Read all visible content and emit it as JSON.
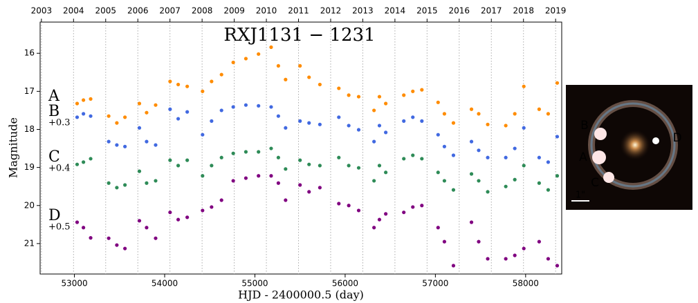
{
  "chart_data": {
    "type": "scatter",
    "title": "RXJ1131 − 1231",
    "x_label": "HJD - 2400000.5 (day)",
    "y_label": "Magnitude",
    "x": [
      53030,
      53100,
      53180,
      53380,
      53470,
      53560,
      53720,
      53800,
      53900,
      54060,
      54150,
      54250,
      54420,
      54520,
      54630,
      54760,
      54900,
      55040,
      55180,
      55260,
      55340,
      55500,
      55600,
      55720,
      55930,
      56040,
      56150,
      56320,
      56380,
      56450,
      56650,
      56750,
      56850,
      57030,
      57100,
      57200,
      57400,
      57480,
      57580,
      57780,
      57880,
      57980,
      58150,
      58250,
      58350
    ],
    "series": [
      {
        "name": "A",
        "color": "#ff8c00",
        "values": [
          17.32,
          17.23,
          17.2,
          17.65,
          17.83,
          17.68,
          17.32,
          17.56,
          17.36,
          16.74,
          16.82,
          16.87,
          17.0,
          16.74,
          16.56,
          16.24,
          16.14,
          16.02,
          15.84,
          16.33,
          16.69,
          16.33,
          16.63,
          16.82,
          16.92,
          17.1,
          17.14,
          17.5,
          17.14,
          17.32,
          17.1,
          17.0,
          16.96,
          17.29,
          17.59,
          17.83,
          17.47,
          17.59,
          17.87,
          17.9,
          17.59,
          16.87,
          17.47,
          17.59,
          16.78
        ]
      },
      {
        "name": "B",
        "offset_label": "+0.3",
        "color": "#4169e1",
        "values": [
          17.68,
          17.59,
          17.65,
          18.32,
          18.41,
          18.45,
          17.96,
          18.32,
          18.41,
          17.47,
          17.72,
          17.54,
          18.14,
          17.78,
          17.5,
          17.41,
          17.36,
          17.38,
          17.41,
          17.65,
          17.96,
          17.78,
          17.83,
          17.87,
          17.68,
          17.9,
          18.01,
          18.32,
          17.9,
          18.08,
          17.78,
          17.68,
          17.78,
          18.14,
          18.45,
          18.68,
          18.32,
          18.55,
          18.74,
          18.74,
          18.5,
          17.96,
          18.74,
          18.86,
          18.19
        ]
      },
      {
        "name": "C",
        "offset_label": "+0.4",
        "color": "#2e8b57",
        "values": [
          18.92,
          18.86,
          18.77,
          19.41,
          19.53,
          19.46,
          19.1,
          19.41,
          19.35,
          18.81,
          18.95,
          18.81,
          19.22,
          18.95,
          18.74,
          18.63,
          18.59,
          18.59,
          18.5,
          18.74,
          19.04,
          18.81,
          18.92,
          18.95,
          18.74,
          18.95,
          19.01,
          19.35,
          18.95,
          19.13,
          18.77,
          18.68,
          18.77,
          19.13,
          19.35,
          19.59,
          19.17,
          19.35,
          19.64,
          19.5,
          19.32,
          18.95,
          19.41,
          19.59,
          19.22
        ]
      },
      {
        "name": "D",
        "offset_label": "+0.5",
        "color": "#800080",
        "values": [
          20.44,
          20.58,
          20.85,
          20.86,
          21.04,
          21.13,
          20.4,
          20.58,
          20.86,
          20.18,
          20.37,
          20.31,
          20.13,
          20.04,
          19.86,
          19.35,
          19.28,
          19.22,
          19.22,
          19.41,
          19.86,
          19.46,
          19.64,
          19.53,
          19.95,
          20.0,
          20.13,
          20.58,
          20.37,
          20.22,
          20.18,
          20.04,
          20.0,
          20.58,
          20.95,
          21.58,
          20.44,
          20.95,
          21.4,
          21.4,
          21.31,
          21.13,
          20.95,
          21.4,
          21.58
        ]
      }
    ],
    "xlim": [
      52620,
      58400
    ],
    "xticks": [
      53000,
      54000,
      55000,
      56000,
      57000,
      58000
    ],
    "x2lim": [
      2002.96,
      2019.19
    ],
    "x2ticks": [
      2003,
      2004,
      2005,
      2006,
      2007,
      2008,
      2009,
      2010,
      2011,
      2012,
      2013,
      2014,
      2015,
      2016,
      2017,
      2018,
      2019
    ],
    "ylim": [
      21.8,
      15.18
    ],
    "yticks": [
      16,
      17,
      18,
      19,
      20,
      21
    ],
    "grid": true
  },
  "image": {
    "labels": [
      "B",
      "A",
      "C",
      "D"
    ],
    "scale": "1\""
  }
}
